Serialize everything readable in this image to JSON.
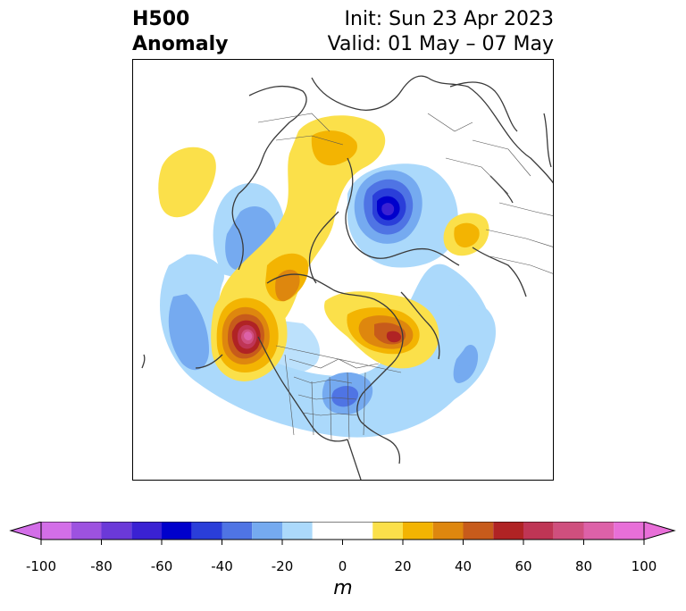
{
  "title": {
    "variable": "H500",
    "field": "Anomaly",
    "init": "Init: Sun 23 Apr 2023",
    "valid": "Valid: 01 May – 07 May"
  },
  "colorbar": {
    "units": "m",
    "ticks": [
      "-100",
      "-80",
      "-60",
      "-40",
      "-20",
      "0",
      "20",
      "40",
      "60",
      "80",
      "100"
    ],
    "levels": [
      -100,
      -90,
      -80,
      -70,
      -60,
      -50,
      -40,
      -30,
      -20,
      -10,
      10,
      20,
      30,
      40,
      50,
      60,
      70,
      80,
      90,
      100
    ],
    "colors": [
      "#d36ee8",
      "#9d52e0",
      "#6b39d8",
      "#3a21d3",
      "#0000cc",
      "#2a3ed9",
      "#4f74e4",
      "#75aaf0",
      "#abd9fb",
      "#ffffff",
      "#fbe04a",
      "#f3b402",
      "#de870e",
      "#c75b1b",
      "#b02324",
      "#bf3555",
      "#cf4f7e",
      "#dd61a8",
      "#e86fd8"
    ],
    "extend_low_color": "#d36ee8",
    "extend_high_color": "#e86fd8"
  },
  "anomalies": [
    {
      "region": "Western North America / Gulf of Alaska",
      "sign": "positive",
      "peak_m": 80
    },
    {
      "region": "Hudson Bay / Labrador",
      "sign": "positive",
      "peak_m": 60
    },
    {
      "region": "Greenland / Arctic Ocean",
      "sign": "positive",
      "peak_m": 30
    },
    {
      "region": "Central Siberia",
      "sign": "positive",
      "peak_m": 20
    },
    {
      "region": "Northeast Pacific (mid-latitudes)",
      "sign": "positive",
      "peak_m": 20
    },
    {
      "region": "Barents Sea / Scandinavia Arctic",
      "sign": "negative",
      "peak_m": -60
    },
    {
      "region": "Eastern United States",
      "sign": "negative",
      "peak_m": -40
    },
    {
      "region": "Central Pacific",
      "sign": "negative",
      "peak_m": -30
    },
    {
      "region": "North Atlantic",
      "sign": "negative",
      "peak_m": -30
    },
    {
      "region": "Eastern Siberia / Bering",
      "sign": "negative",
      "peak_m": -30
    }
  ]
}
